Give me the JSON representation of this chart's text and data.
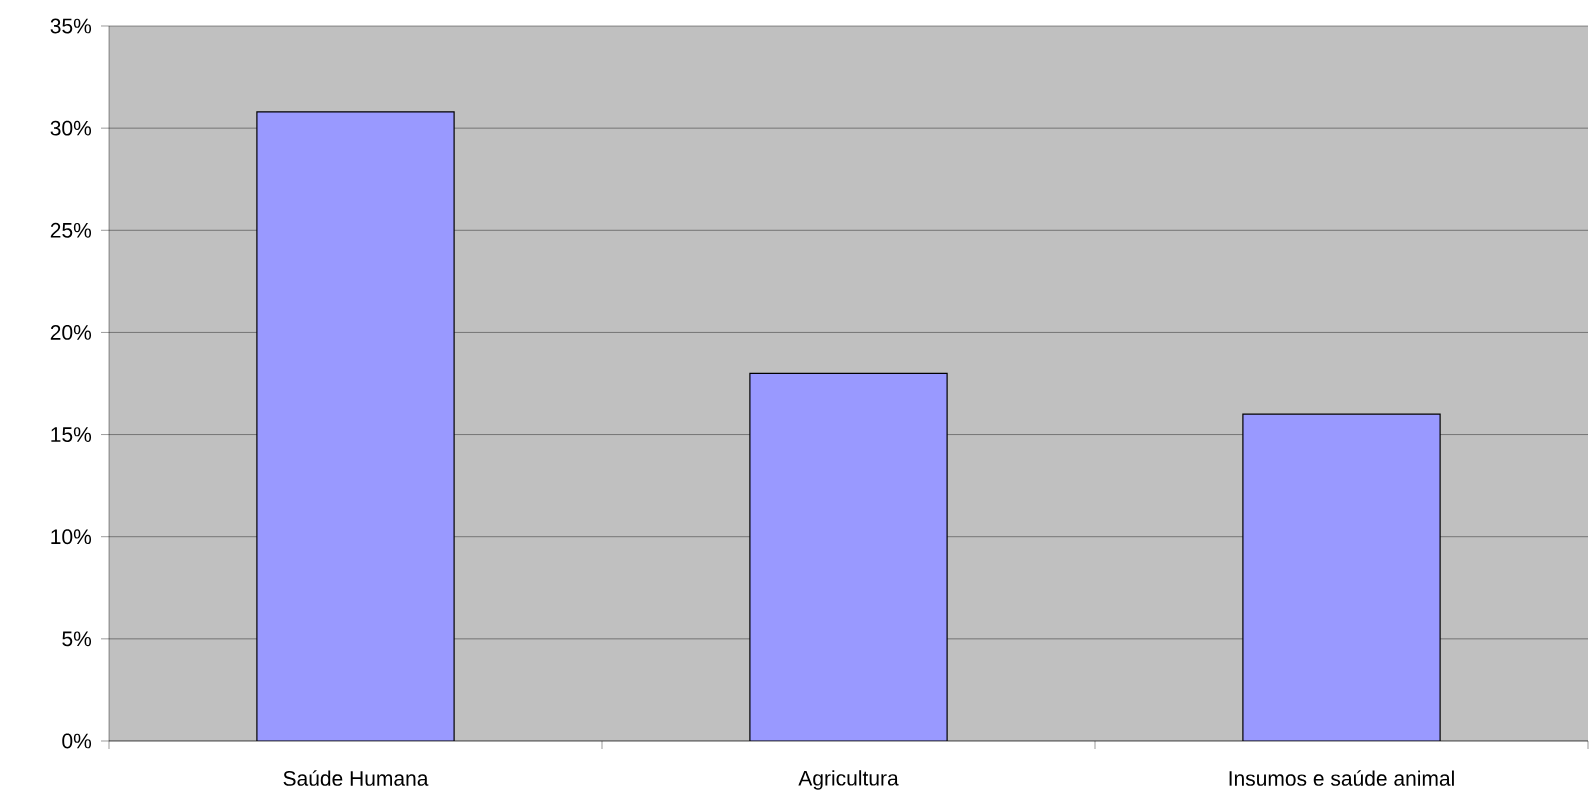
{
  "chart_data": {
    "type": "bar",
    "categories": [
      "Saúde Humana",
      "Agricultura",
      "Insumos e saúde animal"
    ],
    "values": [
      30.8,
      18.0,
      16.0
    ],
    "color": "#9999ff",
    "ylim": [
      0,
      35
    ],
    "yticks": [
      {
        "value": 0,
        "label": "0%"
      },
      {
        "value": 5,
        "label": "5%"
      },
      {
        "value": 10,
        "label": "10%"
      },
      {
        "value": 15,
        "label": "15%"
      },
      {
        "value": 20,
        "label": "20%"
      },
      {
        "value": 25,
        "label": "25%"
      },
      {
        "value": 30,
        "label": "30%"
      },
      {
        "value": 35,
        "label": "35%"
      }
    ],
    "grid": "y"
  }
}
